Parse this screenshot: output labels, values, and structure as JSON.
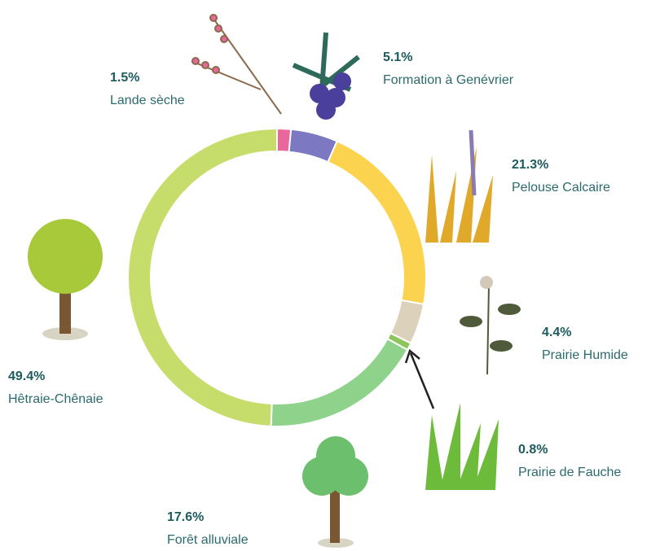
{
  "chart_data": {
    "type": "pie",
    "donut": true,
    "categories": [
      "Lande sèche",
      "Formation à Genévrier",
      "Pelouse Calcaire",
      "Prairie Humide",
      "Prairie de Fauche",
      "Forêt alluviale",
      "Hêtraie-Chênaie"
    ],
    "values": [
      1.5,
      5.1,
      21.3,
      4.4,
      0.8,
      17.6,
      49.4
    ],
    "value_labels": [
      "1.5%",
      "5.1%",
      "21.3%",
      "4.4%",
      "0.8%",
      "17.6%",
      "49.4%"
    ],
    "colors": [
      "#e8689b",
      "#7c79c2",
      "#fbd34f",
      "#dcd2bc",
      "#8cc65a",
      "#8fd28b",
      "#c6dc6b"
    ]
  }
}
